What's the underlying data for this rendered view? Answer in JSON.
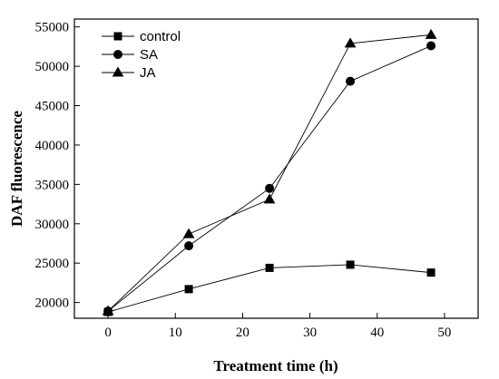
{
  "chart_data": {
    "type": "line",
    "title": "",
    "xlabel": "Treatment time (h)",
    "ylabel": "DAF fluorescence",
    "xlim": [
      -5,
      55
    ],
    "ylim": [
      18000,
      56000
    ],
    "xticks": [
      0,
      10,
      20,
      30,
      40,
      50
    ],
    "yticks": [
      20000,
      25000,
      30000,
      35000,
      40000,
      45000,
      50000,
      55000
    ],
    "x": [
      0,
      12,
      24,
      36,
      48
    ],
    "series": [
      {
        "name": "control",
        "marker": "square",
        "color": "#000000",
        "values": [
          18800,
          21700,
          24400,
          24800,
          23800
        ]
      },
      {
        "name": "SA",
        "marker": "circle",
        "color": "#000000",
        "values": [
          18900,
          27200,
          34500,
          48100,
          52600
        ]
      },
      {
        "name": "JA",
        "marker": "triangle",
        "color": "#000000",
        "values": [
          18900,
          28700,
          33100,
          52900,
          54000
        ]
      }
    ],
    "legend_position": "top-left",
    "grid": false
  }
}
